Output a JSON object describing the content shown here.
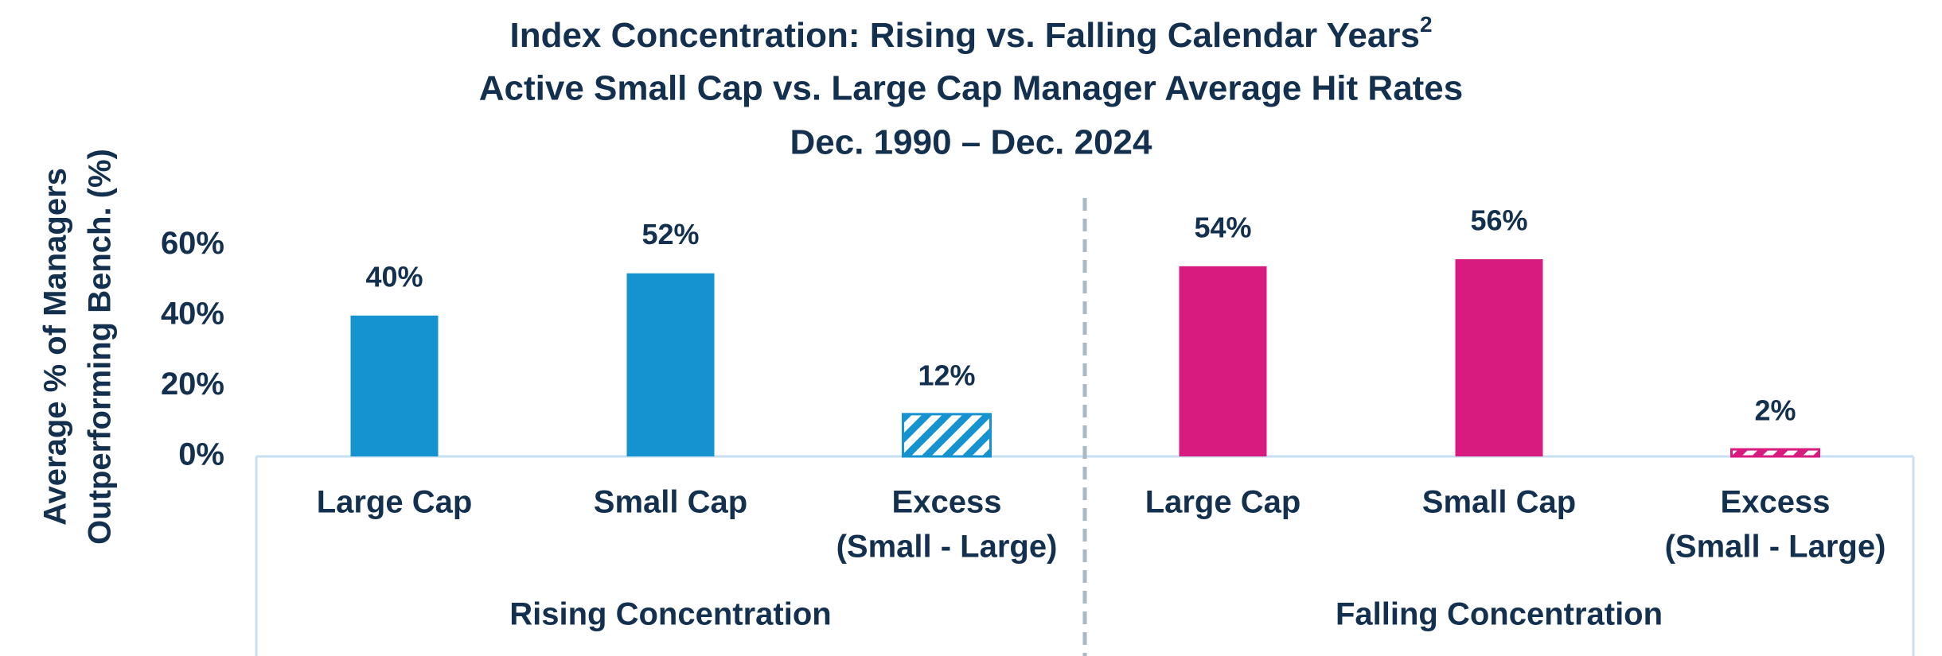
{
  "chart_data": {
    "type": "grouped_bar",
    "title": [
      "Index Concentration: Rising vs. Falling Calendar Years",
      "Active Small Cap vs. Large Cap Manager Average Hit Rates",
      "Dec. 1990 – Dec. 2024"
    ],
    "title_superscript": "2",
    "y_label": [
      "Average % of Managers",
      "Outperforming Bench. (%)"
    ],
    "ylim": [
      0,
      70
    ],
    "yticks": [
      {
        "value": 0,
        "label": "0%"
      },
      {
        "value": 20,
        "label": "20%"
      },
      {
        "value": 40,
        "label": "40%"
      },
      {
        "value": 60,
        "label": "60%"
      }
    ],
    "groups": [
      {
        "name": "Rising Concentration",
        "color": "#1593d0",
        "categories": [
          [
            "Large Cap"
          ],
          [
            "Small Cap"
          ],
          [
            "Excess",
            "(Small - Large)"
          ]
        ],
        "values": [
          40,
          52,
          12
        ],
        "value_labels": [
          "40%",
          "52%",
          "12%"
        ],
        "hatched": [
          false,
          false,
          true
        ]
      },
      {
        "name": "Falling Concentration",
        "color": "#d81b7f",
        "categories": [
          [
            "Large Cap"
          ],
          [
            "Small Cap"
          ],
          [
            "Excess",
            "(Small - Large)"
          ]
        ],
        "values": [
          54,
          56,
          2
        ],
        "value_labels": [
          "54%",
          "56%",
          "2%"
        ],
        "hatched": [
          false,
          false,
          true
        ]
      }
    ]
  }
}
